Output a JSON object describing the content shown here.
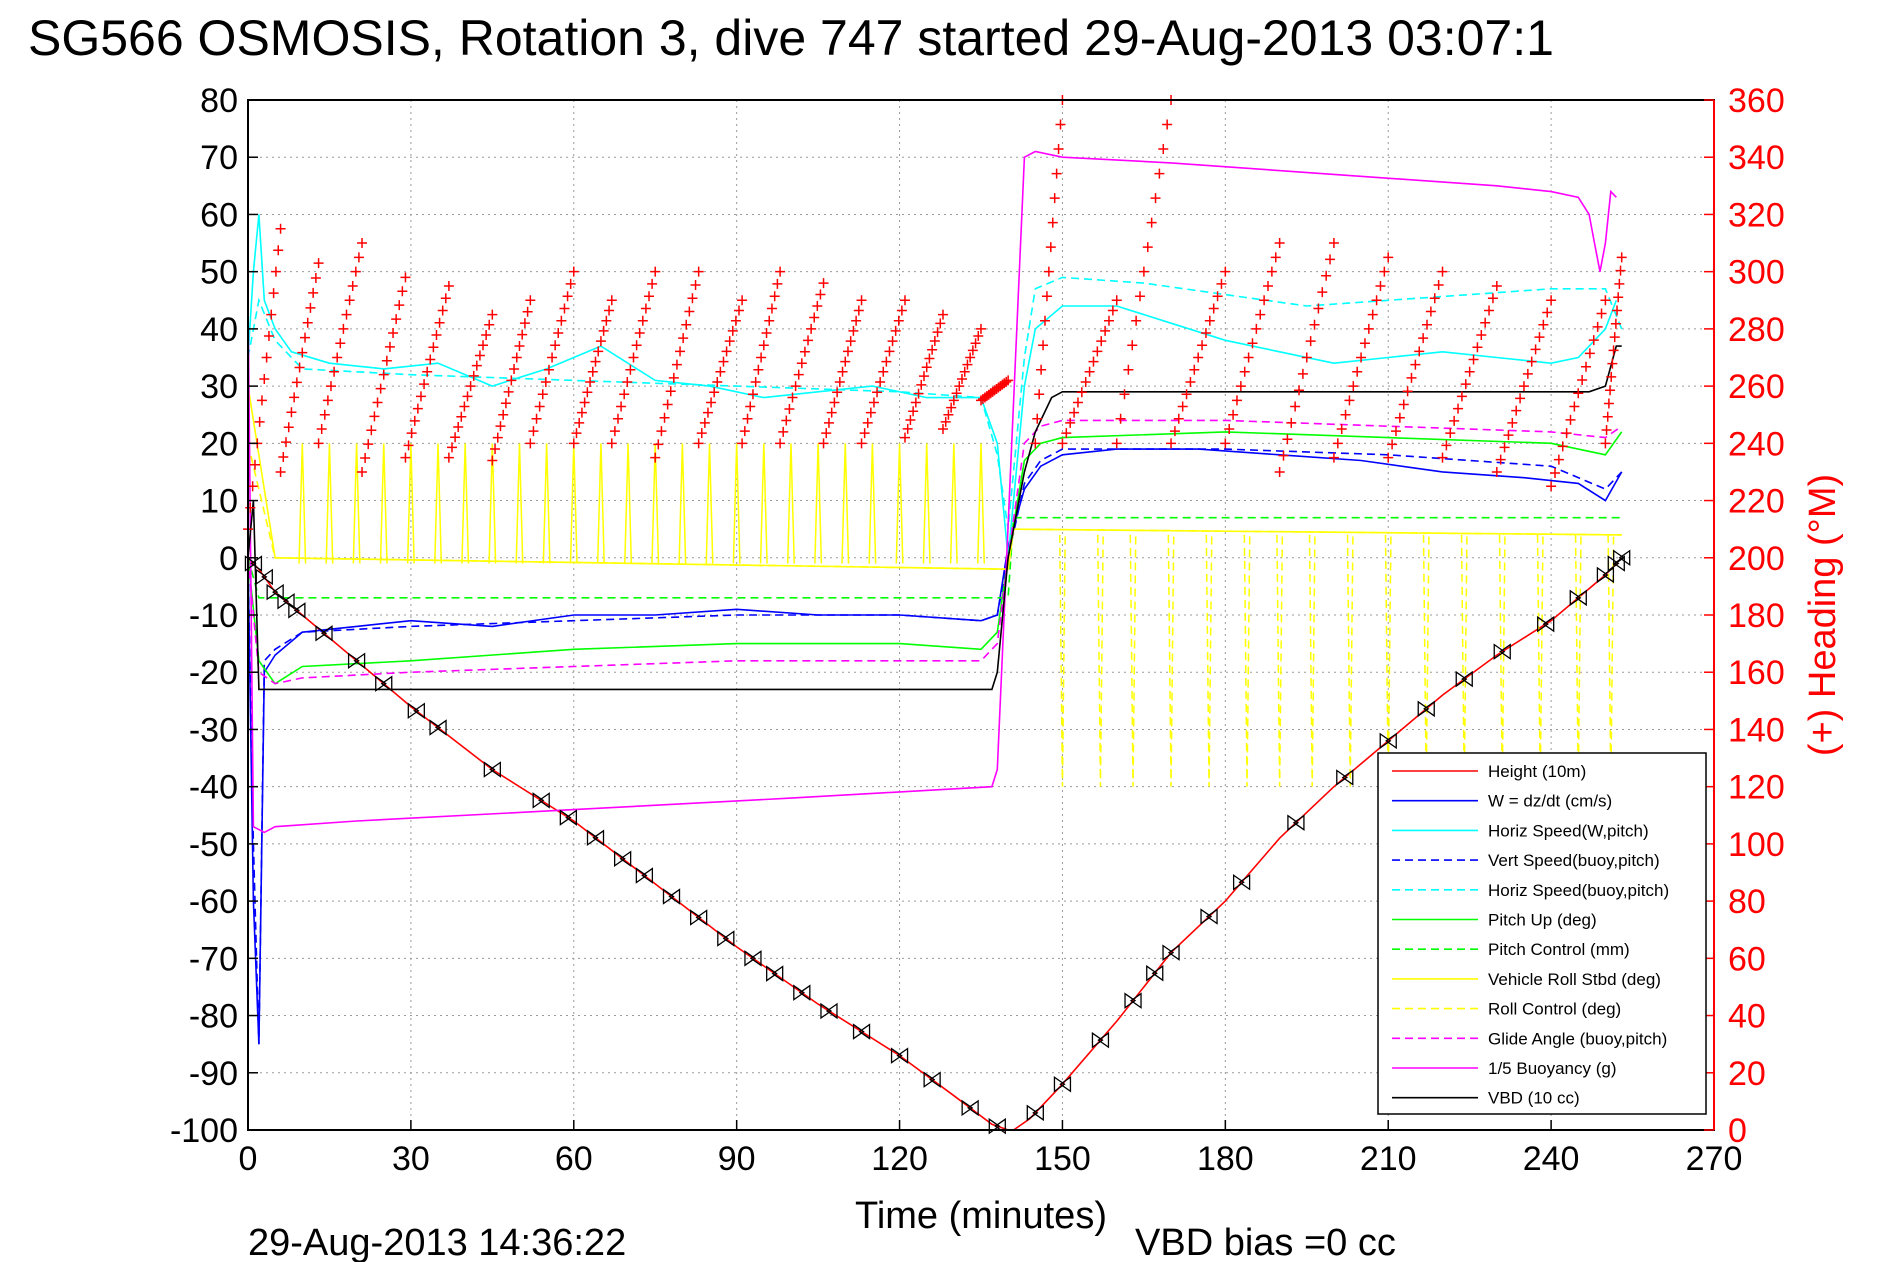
{
  "figure": {
    "title": "SG566 OSMOSIS, Rotation 3, dive 747 started 29-Aug-2013 03:07:1",
    "footer_timestamp": "29-Aug-2013 14:36:22",
    "footer_note": "VBD bias =0 cc"
  },
  "colors": {
    "red": "#ff0000",
    "blue": "#0000ff",
    "cyan": "#00ffff",
    "green": "#00ff00",
    "yellow": "#ffff00",
    "magenta": "#ff00ff",
    "black": "#000000"
  },
  "chart_data": {
    "type": "line",
    "xlabel": "Time (minutes)",
    "ylabel": "",
    "y2label": "(+) Heading (°M)",
    "xlim": [
      0,
      270
    ],
    "ylim": [
      -100,
      80
    ],
    "y2lim": [
      0,
      360
    ],
    "xticks": [
      0,
      30,
      60,
      90,
      120,
      150,
      180,
      210,
      240,
      270
    ],
    "yticks": [
      80,
      70,
      60,
      50,
      40,
      30,
      20,
      10,
      0,
      -10,
      -20,
      -30,
      -40,
      -50,
      -60,
      -70,
      -80,
      -90,
      -100
    ],
    "y2ticks": [
      360,
      340,
      320,
      300,
      280,
      260,
      240,
      220,
      200,
      180,
      160,
      140,
      120,
      100,
      80,
      60,
      40,
      20,
      0
    ],
    "grid": true,
    "legend_position": "bottom-right",
    "legend": [
      {
        "label": "Height (10m)",
        "color": "#ff0000",
        "dash": false
      },
      {
        "label": "W = dz/dt (cm/s)",
        "color": "#0000ff",
        "dash": false
      },
      {
        "label": "Horiz Speed(W,pitch)",
        "color": "#00ffff",
        "dash": false
      },
      {
        "label": "Vert Speed(buoy,pitch)",
        "color": "#0000ff",
        "dash": true
      },
      {
        "label": "Horiz Speed(buoy,pitch)",
        "color": "#00ffff",
        "dash": true
      },
      {
        "label": "Pitch Up (deg)",
        "color": "#00ff00",
        "dash": false
      },
      {
        "label": "Pitch Control (mm)",
        "color": "#00ff00",
        "dash": true
      },
      {
        "label": "Vehicle Roll Stbd (deg)",
        "color": "#ffff00",
        "dash": false
      },
      {
        "label": "Roll Control (deg)",
        "color": "#ffff00",
        "dash": true
      },
      {
        "label": "Glide Angle (buoy,pitch)",
        "color": "#ff00ff",
        "dash": true
      },
      {
        "label": "1/5 Buoyancy (g)",
        "color": "#ff00ff",
        "dash": false
      },
      {
        "label": "VBD (10 cc)",
        "color": "#000000",
        "dash": false
      }
    ],
    "series": [
      {
        "name": "Height (10m)",
        "color": "#ff0000",
        "axis": "left",
        "x": [
          0,
          2,
          5,
          10,
          20,
          30,
          45,
          60,
          75,
          90,
          105,
          120,
          130,
          137,
          140,
          141,
          144,
          150,
          160,
          170,
          180,
          190,
          200,
          210,
          220,
          230,
          240,
          250,
          253
        ],
        "y": [
          0,
          -2,
          -6,
          -10,
          -18,
          -26,
          -37,
          -46,
          -57,
          -68,
          -78,
          -87,
          -94,
          -99,
          -100,
          -100,
          -98,
          -92,
          -81,
          -69,
          -60,
          -49,
          -40,
          -32,
          -24,
          -17,
          -11,
          -3,
          0
        ]
      },
      {
        "name": "W = dz/dt (cm/s)",
        "color": "#0000ff",
        "axis": "left",
        "x": [
          0,
          1,
          2,
          3,
          5,
          10,
          20,
          30,
          45,
          60,
          75,
          90,
          105,
          120,
          135,
          138,
          140,
          143,
          146,
          150,
          160,
          175,
          190,
          205,
          220,
          235,
          245,
          250,
          253
        ],
        "y": [
          0,
          -60,
          -85,
          -20,
          -17,
          -13,
          -12,
          -11,
          -12,
          -10,
          -10,
          -9,
          -10,
          -10,
          -11,
          -10,
          2,
          12,
          16,
          18,
          19,
          19,
          18,
          17,
          15,
          14,
          13,
          10,
          15
        ]
      },
      {
        "name": "Horiz Speed(W,pitch)",
        "color": "#00ffff",
        "axis": "left",
        "x": [
          0,
          1,
          2,
          3,
          5,
          8,
          15,
          25,
          35,
          45,
          55,
          65,
          75,
          85,
          95,
          105,
          115,
          125,
          135,
          138,
          140,
          143,
          145,
          150,
          160,
          170,
          180,
          190,
          200,
          210,
          220,
          230,
          240,
          245,
          250,
          252
        ],
        "y": [
          35,
          50,
          60,
          45,
          40,
          36,
          34,
          33,
          34,
          30,
          33,
          37,
          31,
          30,
          28,
          29,
          30,
          28,
          28,
          20,
          0,
          30,
          40,
          44,
          44,
          41,
          38,
          36,
          34,
          35,
          36,
          35,
          34,
          35,
          40,
          45
        ]
      },
      {
        "name": "Vert Speed(buoy,pitch)",
        "color": "#0000ff",
        "axis": "left",
        "dash": true,
        "x": [
          0,
          1,
          2,
          3,
          5,
          10,
          30,
          60,
          90,
          120,
          135,
          138,
          140,
          143,
          146,
          150,
          180,
          210,
          240,
          250,
          253
        ],
        "y": [
          0,
          -50,
          -85,
          -18,
          -16,
          -13,
          -12,
          -11,
          -10,
          -10,
          -11,
          -10,
          0,
          13,
          17,
          19,
          19,
          18,
          16,
          12,
          15
        ]
      },
      {
        "name": "Horiz Speed(buoy,pitch)",
        "color": "#00ffff",
        "axis": "left",
        "dash": true,
        "x": [
          0,
          2,
          5,
          10,
          30,
          60,
          90,
          120,
          135,
          138,
          140,
          143,
          145,
          150,
          165,
          180,
          195,
          210,
          225,
          240,
          250,
          253
        ],
        "y": [
          35,
          45,
          38,
          33,
          32,
          31,
          30,
          29,
          28,
          18,
          5,
          35,
          47,
          49,
          48,
          46,
          44,
          45,
          46,
          47,
          47,
          40
        ]
      },
      {
        "name": "Pitch Up (deg)",
        "color": "#00ff00",
        "axis": "left",
        "x": [
          0,
          2,
          5,
          10,
          30,
          60,
          90,
          120,
          135,
          138,
          140,
          143,
          146,
          150,
          180,
          210,
          240,
          250,
          253
        ],
        "y": [
          0,
          -18,
          -22,
          -19,
          -18,
          -16,
          -15,
          -15,
          -16,
          -13,
          0,
          17,
          20,
          21,
          22,
          21,
          20,
          18,
          22
        ]
      },
      {
        "name": "Pitch Control (mm)",
        "color": "#00ff00",
        "axis": "left",
        "dash": true,
        "x": [
          0,
          2,
          5,
          140,
          141,
          253
        ],
        "y": [
          0,
          -7,
          -7,
          -7,
          7,
          7
        ]
      },
      {
        "name": "Vehicle Roll Stbd (deg)",
        "color": "#ffff00",
        "axis": "left",
        "x": [
          0,
          5,
          140,
          141,
          253
        ],
        "y": [
          30,
          0,
          -2,
          5,
          4
        ]
      },
      {
        "name": "Roll Control (deg)",
        "color": "#ffff00",
        "axis": "left",
        "dash": true,
        "x": [
          0,
          5,
          140,
          141,
          253
        ],
        "y": [
          20,
          0,
          -2,
          5,
          4
        ]
      },
      {
        "name": "Glide Angle (buoy,pitch)",
        "color": "#ff00ff",
        "axis": "left",
        "dash": true,
        "x": [
          0,
          2,
          5,
          10,
          30,
          60,
          90,
          120,
          135,
          138,
          140,
          143,
          146,
          150,
          180,
          210,
          240,
          250,
          253
        ],
        "y": [
          0,
          -20,
          -22,
          -21,
          -20,
          -19,
          -18,
          -18,
          -18,
          -15,
          0,
          20,
          23,
          24,
          24,
          23,
          22,
          21,
          23
        ]
      },
      {
        "name": "1/5 Buoyancy (g)",
        "color": "#ff00ff",
        "axis": "left",
        "x": [
          0,
          1,
          3,
          5,
          20,
          60,
          100,
          137,
          138,
          143,
          145,
          150,
          170,
          200,
          230,
          240,
          245,
          247,
          248,
          249,
          250,
          251,
          252
        ],
        "y": [
          45,
          -47,
          -48,
          -47,
          -46,
          -44,
          -42,
          -40,
          -37,
          70,
          71,
          70,
          69,
          67,
          65,
          64,
          63,
          60,
          55,
          50,
          55,
          64,
          63
        ]
      },
      {
        "name": "VBD (10 cc)",
        "color": "#000000",
        "axis": "left",
        "x": [
          0,
          1,
          2,
          5,
          137,
          138,
          140,
          143,
          145,
          148,
          150,
          245,
          247,
          250,
          252,
          253
        ],
        "y": [
          0,
          10,
          -23,
          -23,
          -23,
          -20,
          0,
          15,
          22,
          28,
          29,
          29,
          29,
          30,
          37,
          37
        ]
      }
    ],
    "heading": {
      "name": "Heading (°M)",
      "axis": "right",
      "marker": "+",
      "color": "#ff0000",
      "segments": [
        {
          "x": [
            0,
            6
          ],
          "y": [
            210,
            315
          ]
        },
        {
          "x": [
            6,
            13
          ],
          "y": [
            230,
            303
          ]
        },
        {
          "x": [
            13,
            21
          ],
          "y": [
            240,
            310
          ]
        },
        {
          "x": [
            21,
            29
          ],
          "y": [
            230,
            298
          ]
        },
        {
          "x": [
            29,
            37
          ],
          "y": [
            235,
            295
          ]
        },
        {
          "x": [
            37,
            45
          ],
          "y": [
            235,
            285
          ]
        },
        {
          "x": [
            45,
            52
          ],
          "y": [
            234,
            290
          ]
        },
        {
          "x": [
            52,
            60
          ],
          "y": [
            240,
            300
          ]
        },
        {
          "x": [
            60,
            67
          ],
          "y": [
            240,
            290
          ]
        },
        {
          "x": [
            67,
            75
          ],
          "y": [
            240,
            300
          ]
        },
        {
          "x": [
            75,
            83
          ],
          "y": [
            235,
            300
          ]
        },
        {
          "x": [
            83,
            91
          ],
          "y": [
            240,
            290
          ]
        },
        {
          "x": [
            91,
            98
          ],
          "y": [
            240,
            300
          ]
        },
        {
          "x": [
            98,
            106
          ],
          "y": [
            240,
            296
          ]
        },
        {
          "x": [
            106,
            113
          ],
          "y": [
            240,
            290
          ]
        },
        {
          "x": [
            113,
            121
          ],
          "y": [
            240,
            290
          ]
        },
        {
          "x": [
            121,
            128
          ],
          "y": [
            242,
            285
          ]
        },
        {
          "x": [
            128,
            135
          ],
          "y": [
            245,
            280
          ]
        },
        {
          "x": [
            135,
            140
          ],
          "y": [
            255,
            262
          ]
        },
        {
          "x": [
            145,
            150
          ],
          "y": [
            240,
            360
          ]
        },
        {
          "x": [
            150,
            160
          ],
          "y": [
            240,
            290
          ]
        },
        {
          "x": [
            160,
            170
          ],
          "y": [
            240,
            360
          ]
        },
        {
          "x": [
            170,
            180
          ],
          "y": [
            240,
            300
          ]
        },
        {
          "x": [
            180,
            190
          ],
          "y": [
            240,
            310
          ]
        },
        {
          "x": [
            190,
            200
          ],
          "y": [
            230,
            310
          ]
        },
        {
          "x": [
            200,
            210
          ],
          "y": [
            235,
            305
          ]
        },
        {
          "x": [
            210,
            220
          ],
          "y": [
            235,
            300
          ]
        },
        {
          "x": [
            220,
            230
          ],
          "y": [
            235,
            295
          ]
        },
        {
          "x": [
            230,
            240
          ],
          "y": [
            230,
            290
          ]
        },
        {
          "x": [
            240,
            250
          ],
          "y": [
            225,
            290
          ]
        },
        {
          "x": [
            250,
            253
          ],
          "y": [
            240,
            305
          ]
        }
      ]
    },
    "roll_spikes": {
      "first_dive_x": [
        10,
        15,
        20,
        25,
        30,
        35,
        40,
        45,
        50,
        55,
        60,
        65,
        70,
        75,
        80,
        85,
        90,
        95,
        100,
        105,
        110,
        115,
        120,
        125,
        130,
        135
      ],
      "first_dive_peak": 20,
      "climb_x": [
        150,
        157,
        163,
        170,
        177,
        184,
        190,
        196,
        203,
        210,
        217,
        224,
        231,
        238,
        245,
        251
      ],
      "climb_trough": -40
    },
    "depth_markers": {
      "name": "Height (10m)",
      "marker": "triangle",
      "x": [
        1,
        3,
        5,
        7,
        9,
        14,
        20,
        25,
        31,
        35,
        45,
        54,
        59,
        64,
        69,
        73,
        78,
        83,
        88,
        93,
        97,
        102,
        107,
        113,
        120,
        126,
        133,
        138,
        145,
        150,
        157,
        163,
        167,
        170,
        177,
        183,
        193,
        202,
        210,
        217,
        224,
        231,
        239,
        245,
        250,
        252,
        253
      ]
    }
  }
}
